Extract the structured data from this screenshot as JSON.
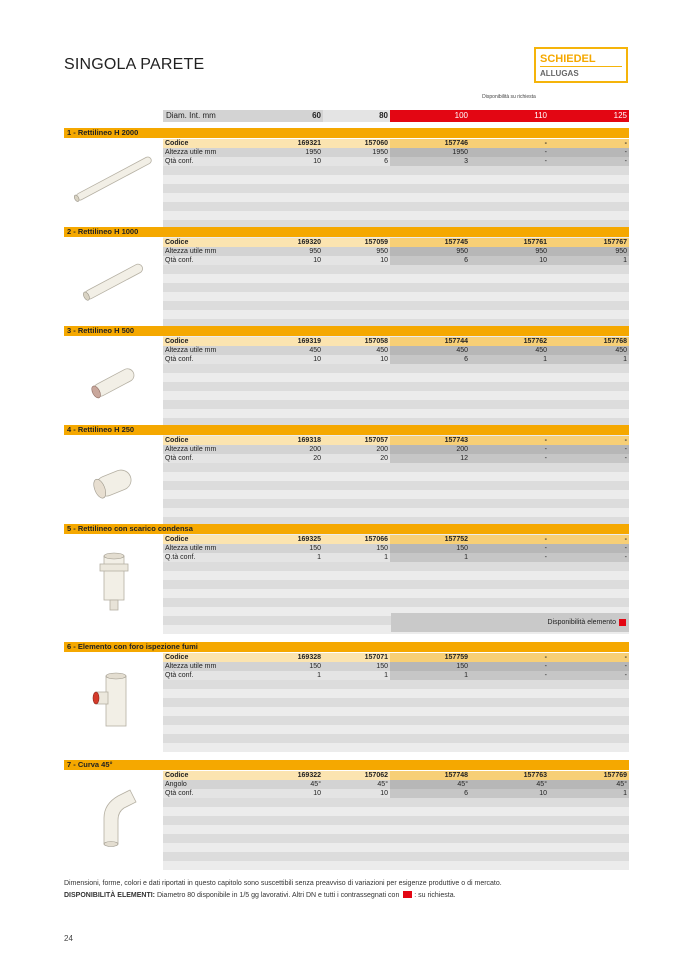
{
  "page_title": "SINGOLA PARETE",
  "logo": {
    "brand": "SCHIEDEL",
    "sub": "ALLUGAS"
  },
  "availability_note": "Disponibilità su richiesta",
  "diam_row": {
    "label": "Diam. Int. mm",
    "values": [
      "60",
      "80",
      "100",
      "110",
      "125"
    ]
  },
  "colors": {
    "accent": "#f5a800",
    "red": "#e30613"
  },
  "sections": [
    {
      "title": "1 - Rettilineo H 2000",
      "icon": "long-pipe",
      "rows": [
        {
          "label": "Codice",
          "values": [
            "169321",
            "157060",
            "157746",
            "-",
            "-"
          ]
        },
        {
          "label": "Altezza utile mm",
          "values": [
            "1950",
            "1950",
            "1950",
            "-",
            "-"
          ]
        },
        {
          "label": "Qtà conf.",
          "values": [
            "10",
            "6",
            "3",
            "-",
            "-"
          ]
        }
      ]
    },
    {
      "title": "2 - Rettilineo H 1000",
      "icon": "pipe-1000",
      "rows": [
        {
          "label": "Codice",
          "values": [
            "169320",
            "157059",
            "157745",
            "157761",
            "157767"
          ]
        },
        {
          "label": "Altezza utile mm",
          "values": [
            "950",
            "950",
            "950",
            "950",
            "950"
          ]
        },
        {
          "label": "Qtà conf.",
          "values": [
            "10",
            "10",
            "6",
            "10",
            "1"
          ]
        }
      ]
    },
    {
      "title": "3 - Rettilineo H 500",
      "icon": "pipe-500",
      "rows": [
        {
          "label": "Codice",
          "values": [
            "169319",
            "157058",
            "157744",
            "157762",
            "157768"
          ]
        },
        {
          "label": "Altezza utile mm",
          "values": [
            "450",
            "450",
            "450",
            "450",
            "450"
          ]
        },
        {
          "label": "Qtà conf.",
          "values": [
            "10",
            "10",
            "6",
            "1",
            "1"
          ]
        }
      ]
    },
    {
      "title": "4 - Rettilineo H 250",
      "icon": "pipe-250",
      "rows": [
        {
          "label": "Codice",
          "values": [
            "169318",
            "157057",
            "157743",
            "-",
            "-"
          ]
        },
        {
          "label": "Altezza utile mm",
          "values": [
            "200",
            "200",
            "200",
            "-",
            "-"
          ]
        },
        {
          "label": "Qtà conf.",
          "values": [
            "20",
            "20",
            "12",
            "-",
            "-"
          ]
        }
      ]
    },
    {
      "title": "5 - Rettilineo con scarico condensa",
      "icon": "condensate-pipe",
      "rows": [
        {
          "label": "Codice",
          "values": [
            "169325",
            "157066",
            "157752",
            "-",
            "-"
          ]
        },
        {
          "label": "Altezza utile mm",
          "values": [
            "150",
            "150",
            "150",
            "-",
            "-"
          ]
        },
        {
          "label": "Q.tà conf.",
          "values": [
            "1",
            "1",
            "1",
            "-",
            "-"
          ]
        }
      ]
    },
    {
      "title": "6 - Elemento con foro ispezione fumi",
      "icon": "inspection-element",
      "rows": [
        {
          "label": "Codice",
          "values": [
            "169328",
            "157071",
            "157759",
            "-",
            "-"
          ]
        },
        {
          "label": "Altezza utile mm",
          "values": [
            "150",
            "150",
            "150",
            "-",
            "-"
          ]
        },
        {
          "label": "Qtà conf.",
          "values": [
            "1",
            "1",
            "1",
            "-",
            "-"
          ]
        }
      ]
    },
    {
      "title": "7 - Curva 45°",
      "icon": "elbow-45",
      "rows": [
        {
          "label": "Codice",
          "values": [
            "169322",
            "157062",
            "157748",
            "157763",
            "157769"
          ]
        },
        {
          "label": "Angolo",
          "values": [
            "45°",
            "45°",
            "45°",
            "45°",
            "45°"
          ]
        },
        {
          "label": "Qtà conf.",
          "values": [
            "10",
            "10",
            "6",
            "10",
            "1"
          ]
        }
      ]
    }
  ],
  "avail_element": "Disponibilità elemento",
  "footer": {
    "line1": "Dimensioni, forme, colori e dati riportati in questo capitolo sono suscettibili senza preavviso di variazioni per esigenze produttive o di mercato.",
    "line2_bold": "DISPONIBILITÀ ELEMENTI:",
    "line2": " Diametro 80 disponibile in 1/5 gg lavorativi. Altri DN e tutti i contrassegnati con",
    "line2_end": ": su richiesta."
  },
  "page_number": "24"
}
